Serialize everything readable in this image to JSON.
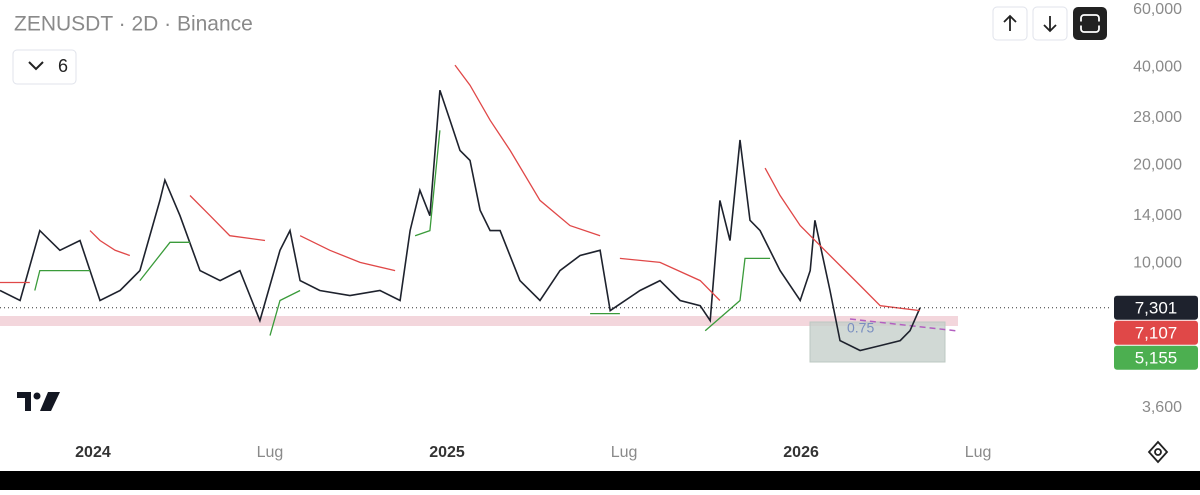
{
  "chart_data": {
    "type": "line",
    "title": "ZENUSDT · 2D · Binance",
    "interval_selector": "6",
    "log_scale": true,
    "ylim": [
      2320,
      64300
    ],
    "yticks": [
      {
        "value": 60000,
        "label": "60,000"
      },
      {
        "value": 40000,
        "label": "40,000"
      },
      {
        "value": 28000,
        "label": "28,000"
      },
      {
        "value": 20000,
        "label": "20,000"
      },
      {
        "value": 14000,
        "label": "14,000"
      },
      {
        "value": 10000,
        "label": "10,000"
      },
      {
        "value": 3600,
        "label": "3,600"
      }
    ],
    "xlim": [
      -3.15,
      34.47
    ],
    "xticks": [
      {
        "value": 0,
        "label": "2024"
      },
      {
        "value": 6,
        "label": "Lug"
      },
      {
        "value": 12,
        "label": "2025"
      },
      {
        "value": 18,
        "label": "Lug"
      },
      {
        "value": 24,
        "label": "2026"
      },
      {
        "value": 30,
        "label": "Lug"
      }
    ],
    "series": [
      {
        "color": "#1e222d",
        "x": [
          -3.15,
          -2.47,
          -1.8,
          -1.12,
          -0.44,
          0.24,
          0.92,
          1.59,
          2.27,
          2.44,
          2.95,
          3.63,
          4.31,
          4.98,
          5.66,
          6.34,
          6.68,
          7.02,
          7.69,
          8.71,
          9.73,
          10.41,
          10.75,
          11.08,
          11.42,
          11.76,
          12.1,
          12.44,
          12.78,
          13.12,
          13.46,
          13.8,
          14.47,
          15.15,
          15.83,
          16.51,
          17.19,
          17.53,
          18.54,
          19.22,
          19.9,
          20.58,
          20.92,
          21.25,
          21.59,
          21.93,
          22.27,
          22.61,
          23.29,
          23.97,
          24.31,
          24.47,
          24.98,
          25.32,
          26,
          26.68,
          27.36,
          27.69,
          28.03
        ],
        "values": [
          8250,
          7690,
          12600,
          10960,
          11750,
          7690,
          8250,
          9500,
          15600,
          18000,
          14000,
          9500,
          8850,
          9500,
          6670,
          10960,
          12600,
          8850,
          8250,
          7960,
          8250,
          7690,
          12600,
          16750,
          14000,
          34000,
          27500,
          22200,
          20700,
          14550,
          12600,
          12600,
          8850,
          7690,
          9500,
          10570,
          10960,
          7160,
          8250,
          8850,
          7690,
          7410,
          6670,
          15600,
          11750,
          23900,
          13550,
          12600,
          9500,
          7690,
          9500,
          13550,
          8250,
          5790,
          5400,
          5590,
          5790,
          6210,
          7300
        ]
      },
      {
        "color": "#e04848",
        "x": [
          -3.15,
          -2.14,
          null,
          -0.1,
          0.24,
          0.75,
          1.25,
          null,
          3.29,
          3.97,
          4.64,
          5.83,
          null,
          7.02,
          8.03,
          9.05,
          10.24,
          null,
          12.27,
          12.78,
          13.46,
          14.14,
          15.15,
          16.17,
          17.19,
          null,
          17.86,
          19.22,
          20.58,
          21.25,
          null,
          22.78,
          23.29,
          23.97,
          24.98,
          26,
          26.68,
          28.03
        ],
        "values": [
          8730,
          8730,
          null,
          12600,
          11750,
          10960,
          10570,
          null,
          16150,
          14000,
          12150,
          11750,
          null,
          12150,
          10960,
          10060,
          9500,
          null,
          40600,
          35200,
          27500,
          22200,
          15600,
          13050,
          12150,
          null,
          10350,
          10060,
          8850,
          7690,
          null,
          19600,
          16150,
          13050,
          10570,
          8550,
          7410,
          7160
        ]
      },
      {
        "color": "#3a9b3a",
        "x": [
          -1.97,
          -1.8,
          -0.1,
          null,
          1.59,
          2.61,
          3.29,
          null,
          6,
          6.34,
          7.02,
          null,
          10.92,
          11.42,
          11.76,
          null,
          16.85,
          17.86,
          null,
          20.75,
          21.93,
          22.1,
          22.95
        ],
        "values": [
          8250,
          9500,
          9500,
          null,
          8850,
          11600,
          11600,
          null,
          6000,
          7690,
          8250,
          null,
          12150,
          12600,
          25600,
          null,
          7010,
          7010,
          null,
          6210,
          7690,
          10350,
          10350
        ]
      }
    ],
    "price_labels": [
      {
        "value": 7301,
        "label": "7,301",
        "color": "#1e222d"
      },
      {
        "value": 7107,
        "label": "7,107",
        "color": "#e04848"
      },
      {
        "value": 5155,
        "label": "5,155",
        "color": "#4caf50"
      }
    ],
    "box_label": "0.75"
  }
}
